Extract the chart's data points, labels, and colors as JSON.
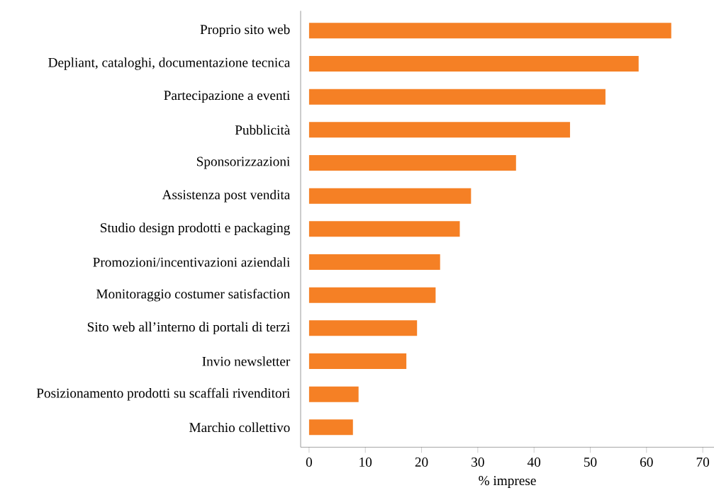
{
  "chart_data": {
    "type": "bar",
    "orientation": "horizontal",
    "xlabel": "% imprese",
    "categories": [
      "Proprio sito web",
      "Depliant, cataloghi, documentazione tecnica",
      "Partecipazione a eventi",
      "Pubblicità",
      "Sponsorizzazioni",
      "Assistenza post vendita",
      "Studio design prodotti e packaging",
      "Promozioni/incentivazioni aziendali",
      "Monitoraggio costumer satisfaction",
      "Sito web all’interno di portali di terzi",
      "Invio newsletter",
      "Posizionamento prodotti su scaffali rivenditori",
      "Marchio collettivo"
    ],
    "values": [
      64.4,
      58.6,
      52.7,
      46.4,
      36.8,
      28.8,
      26.8,
      23.3,
      22.5,
      19.2,
      17.3,
      8.8,
      7.8
    ],
    "color": "#f58025",
    "xlim": [
      -1.5,
      72
    ],
    "xticks": [
      0,
      10,
      20,
      30,
      40,
      50,
      60,
      70
    ]
  }
}
